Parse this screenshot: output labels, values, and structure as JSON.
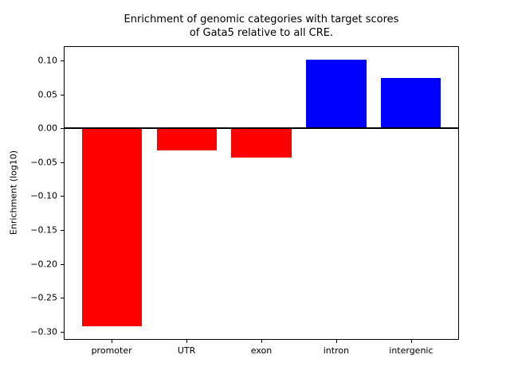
{
  "figure": {
    "title": "Enrichment of genomic categories with target scores\nof Gata5 relative to all CRE.",
    "ylabel": "Enrichment (log10)"
  },
  "chart_data": {
    "type": "bar",
    "title": "Enrichment of genomic categories with target scores\nof Gata5 relative to all CRE.",
    "xlabel": "",
    "ylabel": "Enrichment (log10)",
    "categories": [
      "promoter",
      "UTR",
      "exon",
      "intron",
      "intergenic"
    ],
    "values": [
      -0.292,
      -0.033,
      -0.043,
      0.101,
      0.074
    ],
    "bar_colors": [
      "#ff0000",
      "#ff0000",
      "#ff0000",
      "#0000ff",
      "#0000ff"
    ],
    "negative_color": "#ff0000",
    "positive_color": "#0000ff",
    "axis_color": "#000000",
    "background_color": "#ffffff",
    "ylim": [
      -0.312,
      0.121
    ],
    "xlim": [
      -0.64,
      4.64
    ],
    "bar_width": 0.8,
    "yticks": [
      0.1,
      0.05,
      0.0,
      -0.05,
      -0.1,
      -0.15,
      -0.2,
      -0.25,
      -0.3
    ],
    "ytick_labels": [
      "0.10",
      "0.05",
      "0.00",
      "−0.05",
      "−0.10",
      "−0.15",
      "−0.20",
      "−0.25",
      "−0.30"
    ],
    "grid": false,
    "legend": null,
    "zero_line": true
  }
}
